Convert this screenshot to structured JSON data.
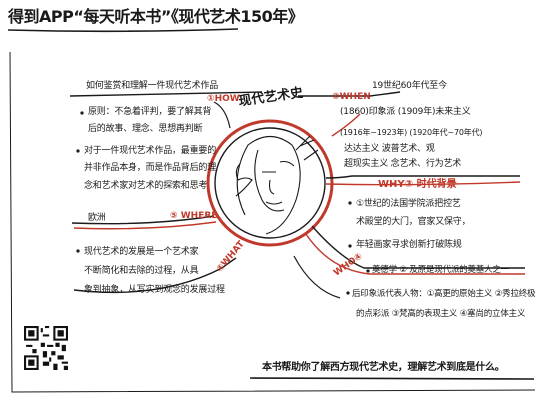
{
  "header": {
    "title": "得到APP“每天听本书”《现代艺术150年》"
  },
  "center": {
    "title": "现代艺术史"
  },
  "how": {
    "tag": "①HOW",
    "lines": [
      "如何鉴赏和理解一件现代艺术作品",
      "原则：不急着评判，要了解其背",
      "后的故事、理念、思想再判断",
      "对于一件现代艺术作品，最重要的",
      "并非作品本身，而是作品背后的理",
      "念和艺术家对艺术的探索和思考"
    ]
  },
  "where": {
    "tag": "⑤ WHERE",
    "place": "欧洲"
  },
  "what": {
    "tag": "④WHAT",
    "lines": [
      "现代艺术的发展是一个艺术家",
      "不断简化和去除的过程，从具",
      "象到抽象，从写实到观念的发展过程"
    ]
  },
  "when": {
    "tag": "②WHEN",
    "lines": [
      "19世纪60年代至今",
      "(1860)印象派  (1909年)未来主义",
      "(1916年~1923年)  (1920年代~70年代)",
      "达达主义      波普艺术、观",
      "超现实主义     念艺术、行为艺术"
    ]
  },
  "why": {
    "tag": "WHY③ 时代背景",
    "lines": [
      "①世纪的法国学院派把控艺",
      "术殿堂的大门，官家又保守，",
      "年轻画家寻求创新打破陈规"
    ]
  },
  "who": {
    "tag": "WHO④",
    "lines": [
      "奠德学 ② 及原是现代派的奠基人之一",
      "后印象派代表人物：①高更的原始主义 ②秀拉终极",
      "的点彩派 ③梵高的表现主义 ④塞尚的立体主义"
    ]
  },
  "footer": {
    "text": "本书帮助你了解西方现代艺术史，理解艺术到底是什么。"
  },
  "colors": {
    "accent": "#c0392b",
    "ink": "#1a1a1a"
  }
}
